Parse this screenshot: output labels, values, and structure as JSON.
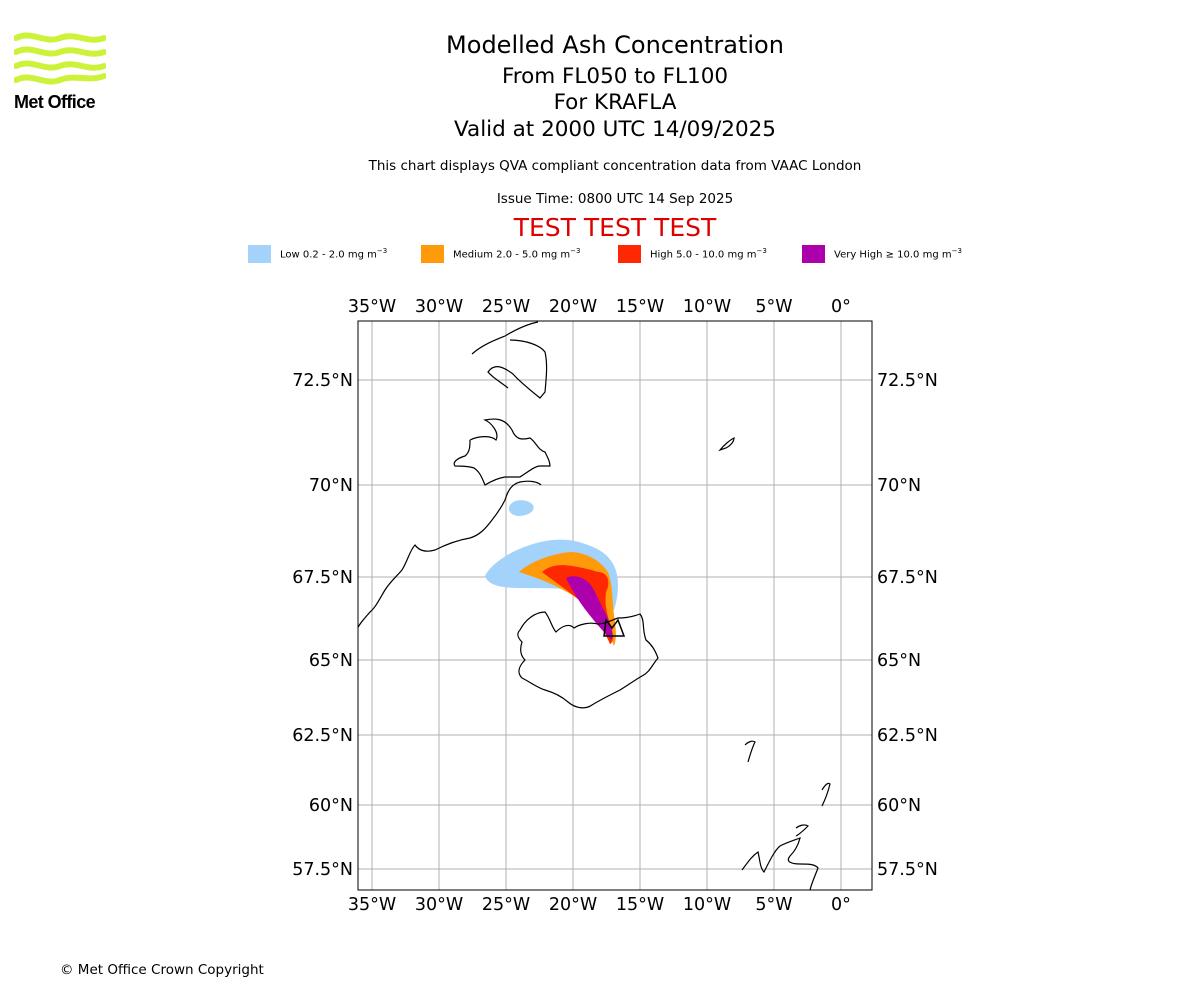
{
  "brand": {
    "logo_text": "Met Office",
    "logo_color": "#ccf23a"
  },
  "header": {
    "title": "Modelled Ash Concentration",
    "levels": "From FL050 to FL100",
    "volcano": "For KRAFLA",
    "valid": "Valid at 2000 UTC 14/09/2025",
    "notice": "This chart displays QVA compliant concentration data from VAAC London",
    "issue_time": "Issue Time: 0800 UTC 14 Sep 2025",
    "test_banner": "TEST TEST TEST"
  },
  "legend": [
    {
      "label": "Low 0.2 - 2.0 mg m",
      "unit_exp": "−3",
      "color": "#a3d3fb"
    },
    {
      "label": "Medium 2.0 - 5.0 mg m",
      "unit_exp": "−3",
      "color": "#ff9b0a"
    },
    {
      "label": "High 5.0 - 10.0 mg m",
      "unit_exp": "−3",
      "color": "#ff2800"
    },
    {
      "label": "Very High  ≥  10.0 mg m",
      "unit_exp": "−3",
      "color": "#ab00ab"
    }
  ],
  "map": {
    "lon_ticks": [
      "35°W",
      "30°W",
      "25°W",
      "20°W",
      "15°W",
      "10°W",
      "5°W",
      "0°"
    ],
    "lat_ticks": [
      "72.5°N",
      "70°N",
      "67.5°N",
      "65°N",
      "62.5°N",
      "60°N",
      "57.5°N"
    ],
    "gridlines": true
  },
  "footer": {
    "copyright": "© Met Office Crown Copyright"
  }
}
